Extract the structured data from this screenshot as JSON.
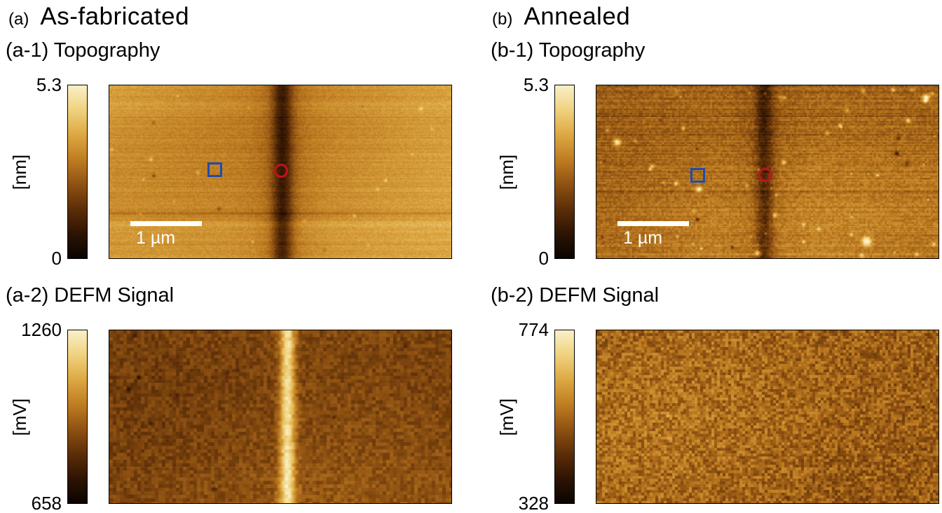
{
  "colors": {
    "background": "#ffffff",
    "text": "#000000",
    "border": "#000000",
    "marker_square": "#1f4da8",
    "marker_circle": "#c1121f",
    "scalebar": "#ffffff"
  },
  "colormap": [
    "#0a0400",
    "#2e1403",
    "#5c2e08",
    "#8f5212",
    "#bf7d22",
    "#dda843",
    "#efd27e",
    "#faf0c8"
  ],
  "panels": [
    {
      "tag": "(a)",
      "title": "As-fabricated",
      "subpanels": [
        {
          "label": "(a-1) Topography",
          "colorbar_max": "5.3",
          "colorbar_min": "0",
          "colorbar_unit": "[nm]",
          "scalebar_label": "1 µm"
        },
        {
          "label": "(a-2) DEFM Signal",
          "colorbar_max": "1260",
          "colorbar_min": "658",
          "colorbar_unit": "[mV]"
        }
      ]
    },
    {
      "tag": "(b)",
      "title": "Annealed",
      "subpanels": [
        {
          "label": "(b-1) Topography",
          "colorbar_max": "5.3",
          "colorbar_min": "0",
          "colorbar_unit": "[nm]",
          "scalebar_label": "1 µm"
        },
        {
          "label": "(b-2) DEFM Signal",
          "colorbar_max": "774",
          "colorbar_min": "328",
          "colorbar_unit": "[mV]"
        }
      ]
    }
  ]
}
